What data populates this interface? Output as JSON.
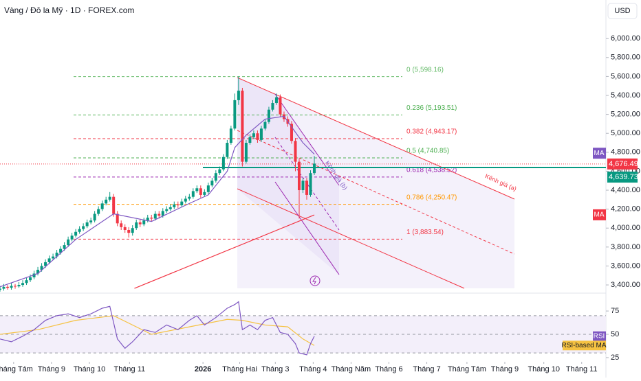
{
  "chart_data": {
    "type": "candlestick",
    "title": "Vàng / Đô la Mỹ · 1D · FOREX.com",
    "currency": "USD",
    "xlim": [
      0,
      160
    ],
    "xticks": [
      {
        "value": 3.6,
        "label": "Tháng Tám"
      },
      {
        "value": 13.6,
        "label": "Tháng 9"
      },
      {
        "value": 23.6,
        "label": "Tháng 10"
      },
      {
        "value": 34.2,
        "label": "Tháng 11"
      },
      {
        "value": 53.6,
        "label": "2026"
      },
      {
        "value": 63.3,
        "label": "Tháng Hai"
      },
      {
        "value": 72.7,
        "label": "Tháng 3"
      },
      {
        "value": 82.7,
        "label": "Tháng 4"
      },
      {
        "value": 92.7,
        "label": "Tháng Năm"
      },
      {
        "value": 102.7,
        "label": "Tháng 6"
      },
      {
        "value": 112.7,
        "label": "Tháng 7"
      },
      {
        "value": 123.3,
        "label": "Tháng Tám"
      },
      {
        "value": 133.3,
        "label": "Tháng 9"
      },
      {
        "value": 143.6,
        "label": "Tháng 10"
      },
      {
        "value": 153.6,
        "label": "Tháng 11"
      }
    ],
    "ylim": [
      3328,
      6407
    ],
    "yticks": [
      {
        "value": 3400,
        "label": "3,400.00"
      },
      {
        "value": 3600,
        "label": "3,600.00"
      },
      {
        "value": 3800,
        "label": "3,800.00"
      },
      {
        "value": 4000,
        "label": "4,000.00"
      },
      {
        "value": 4200,
        "label": "4,200.00"
      },
      {
        "value": 4400,
        "label": "4,400.00"
      },
      {
        "value": 4600,
        "label": "4,600.00"
      },
      {
        "value": 4800,
        "label": "4,800.00"
      },
      {
        "value": 5000,
        "label": "5,000.00"
      },
      {
        "value": 5200,
        "label": "5,200.00"
      },
      {
        "value": 5400,
        "label": "5,400.00"
      },
      {
        "value": 5600,
        "label": "5,600.00"
      },
      {
        "value": 5800,
        "label": "5,800.00"
      },
      {
        "value": 6000,
        "label": "6,000.00"
      }
    ],
    "up_color": "#089981",
    "down_color": "#f23645",
    "candles": {
      "x": [
        0,
        1,
        2,
        3,
        4,
        5,
        6,
        7,
        8,
        9,
        10,
        11,
        12,
        13,
        14,
        15,
        16,
        17,
        18,
        19,
        20,
        21,
        22,
        23,
        24,
        25,
        26,
        27,
        28,
        29,
        30,
        31,
        32,
        33,
        34,
        35,
        36,
        37,
        38,
        39,
        40,
        41,
        42,
        43,
        44,
        45,
        46,
        47,
        48,
        49,
        50,
        51,
        52,
        53,
        54,
        55,
        56,
        57,
        58,
        59,
        60,
        61,
        62,
        63,
        64,
        65,
        66,
        67,
        68,
        69,
        70,
        71,
        72,
        73,
        74,
        75,
        76,
        77,
        78,
        79,
        80,
        81,
        82,
        83
      ],
      "open": [
        3350,
        3360,
        3380,
        3370,
        3390,
        3385,
        3400,
        3420,
        3450,
        3480,
        3520,
        3560,
        3600,
        3640,
        3680,
        3700,
        3740,
        3780,
        3820,
        3880,
        3920,
        3960,
        3990,
        4020,
        4060,
        4080,
        4150,
        4200,
        4260,
        4300,
        4330,
        4150,
        4050,
        4010,
        3980,
        3950,
        4000,
        4060,
        4040,
        4080,
        4110,
        4100,
        4150,
        4130,
        4180,
        4200,
        4220,
        4250,
        4240,
        4280,
        4310,
        4330,
        4390,
        4420,
        4350,
        4380,
        4450,
        4500,
        4580,
        4620,
        4750,
        4900,
        5050,
        5350,
        5450,
        4700,
        4900,
        4960,
        5000,
        4930,
        5050,
        5120,
        5250,
        5320,
        5380,
        5200,
        5150,
        5100,
        4920,
        4700,
        4400,
        4500,
        4350,
        4580
      ],
      "high": [
        3390,
        3410,
        3400,
        3420,
        3410,
        3430,
        3450,
        3480,
        3510,
        3550,
        3590,
        3630,
        3670,
        3710,
        3730,
        3770,
        3810,
        3850,
        3910,
        3950,
        3990,
        4020,
        4050,
        4090,
        4110,
        4180,
        4230,
        4290,
        4330,
        4380,
        4360,
        4180,
        4080,
        4040,
        4010,
        4030,
        4090,
        4090,
        4110,
        4140,
        4140,
        4180,
        4180,
        4210,
        4230,
        4250,
        4280,
        4280,
        4310,
        4340,
        4360,
        4420,
        4450,
        4450,
        4410,
        4480,
        4530,
        4610,
        4650,
        4780,
        4930,
        5080,
        5420,
        5600,
        5480,
        4930,
        4990,
        5030,
        5030,
        5080,
        5150,
        5280,
        5350,
        5420,
        5410,
        5230,
        5180,
        5130,
        4950,
        4730,
        4530,
        4530,
        4610,
        4760
      ],
      "low": [
        3330,
        3340,
        3350,
        3350,
        3360,
        3370,
        3380,
        3400,
        3430,
        3460,
        3500,
        3540,
        3580,
        3620,
        3660,
        3680,
        3720,
        3760,
        3800,
        3860,
        3900,
        3940,
        3970,
        4000,
        4040,
        4060,
        4130,
        4180,
        4240,
        4280,
        4120,
        4020,
        3980,
        3950,
        3900,
        3920,
        3980,
        4010,
        4020,
        4060,
        4070,
        4080,
        4100,
        4110,
        4160,
        4180,
        4200,
        4210,
        4220,
        4260,
        4290,
        4310,
        4370,
        4320,
        4330,
        4360,
        4430,
        4480,
        4560,
        4600,
        4730,
        4880,
        5030,
        5300,
        4650,
        4680,
        4880,
        4940,
        4900,
        4910,
        5030,
        5100,
        5230,
        5300,
        5170,
        5120,
        5070,
        4890,
        4600,
        4100,
        4370,
        4300,
        4330,
        4560
      ],
      "close": [
        3360,
        3380,
        3370,
        3390,
        3385,
        3400,
        3420,
        3450,
        3480,
        3520,
        3560,
        3600,
        3640,
        3680,
        3700,
        3740,
        3780,
        3820,
        3880,
        3920,
        3960,
        3990,
        4020,
        4060,
        4080,
        4150,
        4200,
        4260,
        4300,
        4330,
        4150,
        4050,
        4010,
        3980,
        3950,
        4000,
        4060,
        4040,
        4080,
        4110,
        4100,
        4150,
        4130,
        4180,
        4200,
        4220,
        4250,
        4240,
        4280,
        4310,
        4330,
        4390,
        4420,
        4350,
        4380,
        4450,
        4500,
        4580,
        4620,
        4750,
        4900,
        5050,
        5350,
        5450,
        4700,
        4900,
        4960,
        5000,
        4930,
        5050,
        5120,
        5250,
        5320,
        5380,
        5200,
        5150,
        5100,
        4920,
        4700,
        4400,
        4500,
        4350,
        4580,
        4680
      ]
    },
    "ma": {
      "name": "MA",
      "color": "#7e57c2",
      "x": [
        0,
        10,
        20,
        30,
        40,
        50,
        55,
        60,
        62,
        65,
        70,
        75,
        80,
        83
      ],
      "values": [
        3380,
        3520,
        3880,
        4150,
        4070,
        4260,
        4350,
        4600,
        4850,
        4980,
        5150,
        5180,
        4900,
        4780
      ],
      "tag": {
        "label": "MA",
        "value": 4790
      }
    },
    "ma_long": {
      "name": "MA",
      "color": "#f23645",
      "x": [
        35.5,
        83
      ],
      "values": [
        3364,
        4139
      ],
      "tag": {
        "label": "MA",
        "value": 4140
      }
    },
    "fib_levels": [
      {
        "label": "0 (5,598.16)",
        "value": 5598.16,
        "color": "#66bb6a"
      },
      {
        "label": "0.236 (5,193.51)",
        "value": 5193.51,
        "color": "#4caf50"
      },
      {
        "label": "0.382 (4,943.17)",
        "value": 4943.17,
        "color": "#f23645"
      },
      {
        "label": "0.5 (4,740.85)",
        "value": 4740.85,
        "color": "#4caf50"
      },
      {
        "label": "0.618 (4,538.52)",
        "value": 4538.52,
        "color": "#9c27b0"
      },
      {
        "label": "0.786 (4,250.47)",
        "value": 4250.47,
        "color": "#ff9800"
      },
      {
        "label": "1 (3,883.54)",
        "value": 3883.54,
        "color": "#f23645"
      }
    ],
    "last_price": {
      "value": 4676.49,
      "label": "4,676.49",
      "color": "#f23645"
    },
    "level_line": {
      "value": 4639.73,
      "label": "4,639.73",
      "color": "#089981"
    },
    "channels": [
      {
        "label": "Kênh giá (a)"
      },
      {
        "label": "Kênh giá (b)"
      }
    ],
    "rsi": {
      "ylim": [
        22,
        92
      ],
      "yticks": [
        25,
        50,
        75
      ],
      "levels": [
        30,
        50,
        70
      ],
      "series": {
        "name": "RSI",
        "color": "#7e57c2",
        "x": [
          0,
          3,
          6,
          9,
          12,
          15,
          18,
          21,
          24,
          27,
          29,
          31,
          33,
          35,
          38,
          41,
          44,
          47,
          50,
          52,
          54,
          57,
          60,
          62,
          63,
          64,
          66,
          68,
          70,
          72,
          74,
          76,
          78,
          79,
          81,
          82,
          83
        ],
        "values": [
          45,
          42,
          48,
          55,
          65,
          70,
          72,
          68,
          72,
          78,
          80,
          45,
          35,
          42,
          55,
          52,
          60,
          55,
          65,
          70,
          60,
          68,
          78,
          82,
          85,
          55,
          60,
          55,
          65,
          68,
          52,
          50,
          40,
          30,
          28,
          40,
          48
        ]
      },
      "ma": {
        "name": "RSI-based MA",
        "color": "#f5c242",
        "x": [
          0,
          10,
          20,
          30,
          40,
          50,
          60,
          64,
          70,
          76,
          80,
          83
        ],
        "values": [
          50,
          55,
          65,
          70,
          50,
          58,
          66,
          65,
          60,
          58,
          45,
          38
        ]
      }
    }
  }
}
